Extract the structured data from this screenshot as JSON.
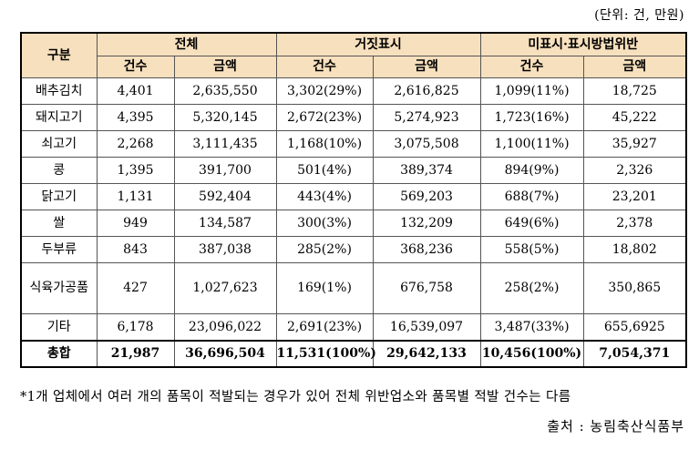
{
  "unit_note": "(단위: 건, 만원)",
  "headers": {
    "category": "구분",
    "groups": [
      "전체",
      "거짓표시",
      "미표시·표시방법위반"
    ],
    "sub": [
      "건수",
      "금액",
      "건수",
      "금액",
      "건수",
      "금액"
    ]
  },
  "rows": [
    {
      "category": "배추김치",
      "values": [
        "4,401",
        "2,635,550",
        "3,302(29%)",
        "2,616,825",
        "1,099(11%)",
        "18,725"
      ]
    },
    {
      "category": "돼지고기",
      "values": [
        "4,395",
        "5,320,145",
        "2,672(23%)",
        "5,274,923",
        "1,723(16%)",
        "45,222"
      ]
    },
    {
      "category": "쇠고기",
      "values": [
        "2,268",
        "3,111,435",
        "1,168(10%)",
        "3,075,508",
        "1,100(11%)",
        "35,927"
      ]
    },
    {
      "category": "콩",
      "values": [
        "1,395",
        "391,700",
        "501(4%)",
        "389,374",
        "894(9%)",
        "2,326"
      ]
    },
    {
      "category": "닭고기",
      "values": [
        "1,131",
        "592,404",
        "443(4%)",
        "569,203",
        "688(7%)",
        "23,201"
      ]
    },
    {
      "category": "쌀",
      "values": [
        "949",
        "134,587",
        "300(3%)",
        "132,209",
        "649(6%)",
        "2,378"
      ]
    },
    {
      "category": "두부류",
      "values": [
        "843",
        "387,038",
        "285(2%)",
        "368,236",
        "558(5%)",
        "18,802"
      ]
    },
    {
      "category": "식육가공품",
      "values": [
        "427",
        "1,027,623",
        "169(1%)",
        "676,758",
        "258(2%)",
        "350,865"
      ]
    },
    {
      "category": "기타",
      "values": [
        "6,178",
        "23,096,022",
        "2,691(23%)",
        "16,539,097",
        "3,487(33%)",
        "655,6925"
      ]
    }
  ],
  "total": {
    "category": "총합",
    "values": [
      "21,987",
      "36,696,504",
      "11,531(100%)",
      "29,642,133",
      "10,456(100%)",
      "7,054,371"
    ]
  },
  "footnote": "*1개 업체에서 여러 개의 품목이 적발되는 경우가 있어 전체 위반업소와 품목별 적발 건수는 다름",
  "source": "출처 : 농림축산식품부"
}
